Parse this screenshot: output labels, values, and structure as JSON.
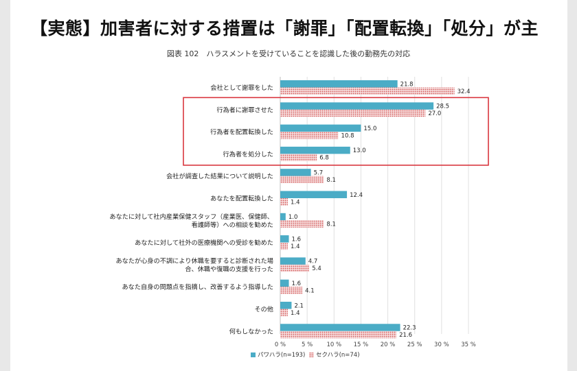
{
  "headline": "【実態】加害者に対する措置は「謝罪」「配置転換」「処分」が主",
  "chart_data": {
    "type": "bar",
    "orientation": "horizontal",
    "title": "図表 102　ハラスメントを受けていることを認識した後の勤務先の対応",
    "categories": [
      "会社として謝罪をした",
      "行為者に謝罪させた",
      "行為者を配置転換した",
      "行為者を処分した",
      "会社が調査した結果について説明した",
      "あなたを配置転換した",
      "あなたに対して社内産業保健スタッフ（産業医、保健師、|看護師等）への相談を勧めた",
      "あなたに対して社外の医療機関への受診を勧めた",
      "あなたが心身の不調により休職を要すると診断された場|合、休職や復職の支援を行った",
      "あなた自身の問題点を指摘し、改善するよう指導した",
      "その他",
      "何もしなかった"
    ],
    "series": [
      {
        "name": "パワハラ(n=193)",
        "color": "#4bacc6",
        "values": [
          21.8,
          28.5,
          15.0,
          13.0,
          5.7,
          12.4,
          1.0,
          1.6,
          4.7,
          1.6,
          2.1,
          22.3
        ]
      },
      {
        "name": "セクハラ(n=74)",
        "color": "#e6a9a9",
        "values": [
          32.4,
          27.0,
          10.8,
          6.8,
          8.1,
          1.4,
          8.1,
          1.4,
          5.4,
          4.1,
          1.4,
          21.6
        ]
      }
    ],
    "value_labels": [
      [
        "21.8",
        "28.5",
        "15.0",
        "13.0",
        "5.7",
        "12.4",
        "1.0",
        "1.6",
        "4.7",
        "1.6",
        "2.1",
        "22.3"
      ],
      [
        "32.4",
        "27.0",
        "10.8",
        "6.8",
        "8.1",
        "1.4",
        "8.1",
        "1.4",
        "5.4",
        "4.1",
        "1.4",
        "21.6"
      ]
    ],
    "xlim": [
      0,
      35
    ],
    "xticks": [
      0,
      5,
      10,
      15,
      20,
      25,
      30,
      35
    ],
    "xtick_labels": [
      "0 %",
      "5 %",
      "10 %",
      "15 %",
      "20 %",
      "25 %",
      "30 %",
      "35 %"
    ],
    "grid": "vertical",
    "legend": "bottom-center",
    "highlight": {
      "categories": [
        1,
        2,
        3
      ],
      "color": "#d9363e"
    }
  }
}
